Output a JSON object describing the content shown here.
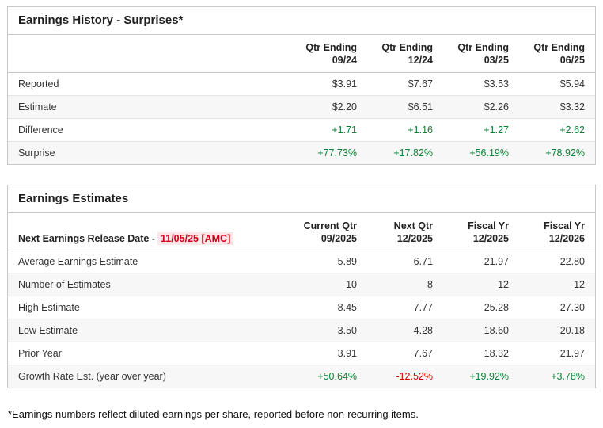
{
  "colors": {
    "positive": "#0d7f34",
    "negative": "#d40000",
    "release_date_text": "#d0021b",
    "release_date_bg": "#fbe7e7",
    "panel_border": "#c9c9c9",
    "alt_row_bg": "#f7f7f7"
  },
  "history": {
    "title": "Earnings History - Surprises*",
    "columns": [
      {
        "line1": "Qtr Ending",
        "line2": "09/24"
      },
      {
        "line1": "Qtr Ending",
        "line2": "12/24"
      },
      {
        "line1": "Qtr Ending",
        "line2": "03/25"
      },
      {
        "line1": "Qtr Ending",
        "line2": "06/25"
      }
    ],
    "rows": [
      {
        "label": "Reported",
        "values": [
          "$3.91",
          "$7.67",
          "$3.53",
          "$5.94"
        ]
      },
      {
        "label": "Estimate",
        "values": [
          "$2.20",
          "$6.51",
          "$2.26",
          "$3.32"
        ]
      },
      {
        "label": "Difference",
        "values": [
          "+1.71",
          "+1.16",
          "+1.27",
          "+2.62"
        ]
      },
      {
        "label": "Surprise",
        "values": [
          "+77.73%",
          "+17.82%",
          "+56.19%",
          "+78.92%"
        ]
      }
    ]
  },
  "estimates": {
    "title": "Earnings Estimates",
    "release_label": "Next Earnings Release Date -",
    "release_date": "11/05/25 [AMC]",
    "columns": [
      {
        "line1": "Current Qtr",
        "line2": "09/2025"
      },
      {
        "line1": "Next Qtr",
        "line2": "12/2025"
      },
      {
        "line1": "Fiscal Yr",
        "line2": "12/2025"
      },
      {
        "line1": "Fiscal Yr",
        "line2": "12/2026"
      }
    ],
    "rows": [
      {
        "label": "Average Earnings Estimate",
        "values": [
          "5.89",
          "6.71",
          "21.97",
          "22.80"
        ]
      },
      {
        "label": "Number of Estimates",
        "values": [
          "10",
          "8",
          "12",
          "12"
        ]
      },
      {
        "label": "High Estimate",
        "values": [
          "8.45",
          "7.77",
          "25.28",
          "27.30"
        ]
      },
      {
        "label": "Low Estimate",
        "values": [
          "3.50",
          "4.28",
          "18.60",
          "20.18"
        ]
      },
      {
        "label": "Prior Year",
        "values": [
          "3.91",
          "7.67",
          "18.32",
          "21.97"
        ]
      },
      {
        "label": "Growth Rate Est. (year over year)",
        "values": [
          "+50.64%",
          "-12.52%",
          "+19.92%",
          "+3.78%"
        ]
      }
    ]
  },
  "footnote": "*Earnings numbers reflect diluted earnings per share, reported before non-recurring items."
}
